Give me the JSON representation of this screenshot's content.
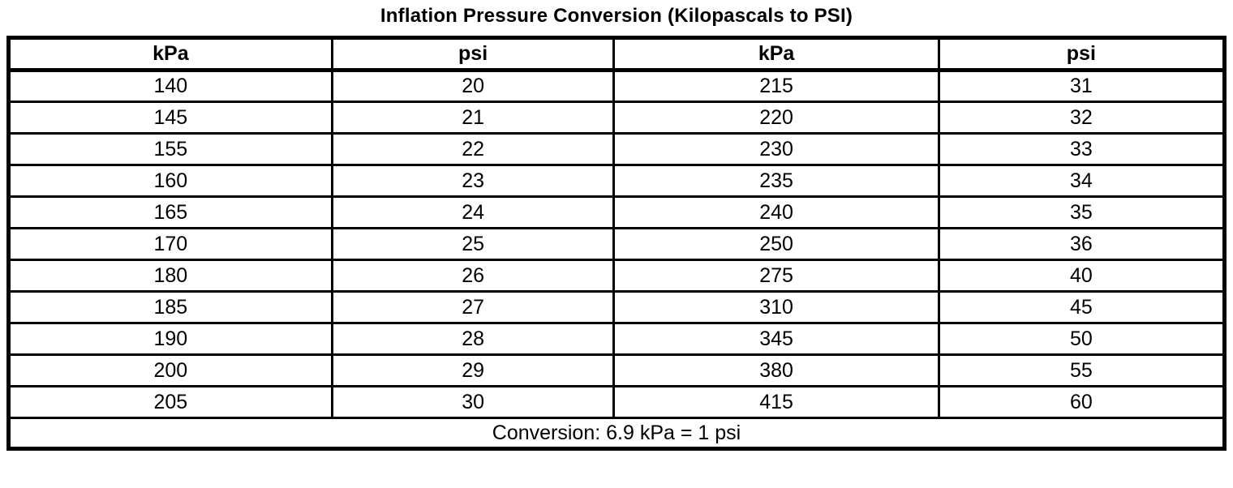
{
  "title": "Inflation Pressure Conversion (Kilopascals to PSI)",
  "table": {
    "columns": [
      "kPa",
      "psi",
      "kPa",
      "psi"
    ],
    "rows": [
      [
        "140",
        "20",
        "215",
        "31"
      ],
      [
        "145",
        "21",
        "220",
        "32"
      ],
      [
        "155",
        "22",
        "230",
        "33"
      ],
      [
        "160",
        "23",
        "235",
        "34"
      ],
      [
        "165",
        "24",
        "240",
        "35"
      ],
      [
        "170",
        "25",
        "250",
        "36"
      ],
      [
        "180",
        "26",
        "275",
        "40"
      ],
      [
        "185",
        "27",
        "310",
        "45"
      ],
      [
        "190",
        "28",
        "345",
        "50"
      ],
      [
        "200",
        "29",
        "380",
        "55"
      ],
      [
        "205",
        "30",
        "415",
        "60"
      ]
    ],
    "footer": "Conversion: 6.9 kPa = 1 psi"
  },
  "colors": {
    "text": "#000000",
    "border": "#000000",
    "background": "#ffffff"
  }
}
